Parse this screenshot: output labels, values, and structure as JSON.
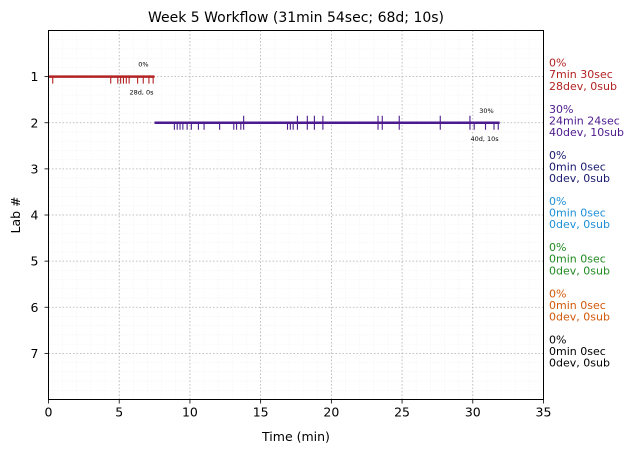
{
  "chart_data": {
    "type": "line",
    "title": "Week 5 Workflow (31min 54sec; 68d; 10s)",
    "xlabel": "Time (min)",
    "ylabel": "Lab #",
    "xlim": [
      0,
      35
    ],
    "ylim": [
      0,
      8
    ],
    "y_inverted": true,
    "x_ticks": [
      "0",
      "5",
      "10",
      "15",
      "20",
      "25",
      "30",
      "35"
    ],
    "y_ticks": [
      "1",
      "2",
      "3",
      "4",
      "5",
      "6",
      "7"
    ],
    "grid": true,
    "series": [
      {
        "lab": 1,
        "color": "#b22222",
        "start": 0.0,
        "end": 7.5,
        "marks": [
          0.3,
          4.4,
          4.9,
          5.1,
          5.3,
          5.5,
          5.7,
          6.3,
          6.7,
          7.1,
          7.4
        ],
        "percent_label": "0%",
        "counts_label": "28d, 0s",
        "side_percent": "0%",
        "side_time": "7min 30sec",
        "side_counts": "28dev, 0sub"
      },
      {
        "lab": 2,
        "color": "#4b1a8c",
        "start": 7.5,
        "end": 31.9,
        "marks": [
          8.9,
          9.1,
          9.3,
          9.5,
          9.8,
          10.1,
          10.6,
          11.0,
          12.1,
          13.1,
          13.3,
          13.6,
          13.8,
          16.9,
          17.1,
          17.3,
          17.6,
          18.3,
          18.8,
          19.4,
          23.3,
          23.6,
          24.8,
          27.7,
          29.8,
          30.1,
          30.9,
          31.5,
          31.8
        ],
        "marks_up": [
          13.8,
          17.6,
          18.3,
          18.8,
          19.4,
          23.3,
          23.6,
          24.8,
          27.7,
          29.8
        ],
        "percent_label": "30%",
        "counts_label": "40d, 10s",
        "side_percent": "30%",
        "side_time": "24min 24sec",
        "side_counts": "40dev, 10sub"
      },
      {
        "lab": 3,
        "color": "#191970",
        "side_percent": "0%",
        "side_time": "0min 0sec",
        "side_counts": "0dev, 0sub"
      },
      {
        "lab": 4,
        "color": "#1e90d6",
        "side_percent": "0%",
        "side_time": "0min 0sec",
        "side_counts": "0dev, 0sub"
      },
      {
        "lab": 5,
        "color": "#228b22",
        "side_percent": "0%",
        "side_time": "0min 0sec",
        "side_counts": "0dev, 0sub"
      },
      {
        "lab": 6,
        "color": "#d2580a",
        "side_percent": "0%",
        "side_time": "0min 0sec",
        "side_counts": "0dev, 0sub"
      },
      {
        "lab": 7,
        "color": "#000000",
        "side_percent": "0%",
        "side_time": "0min 0sec",
        "side_counts": "0dev, 0sub"
      }
    ]
  }
}
